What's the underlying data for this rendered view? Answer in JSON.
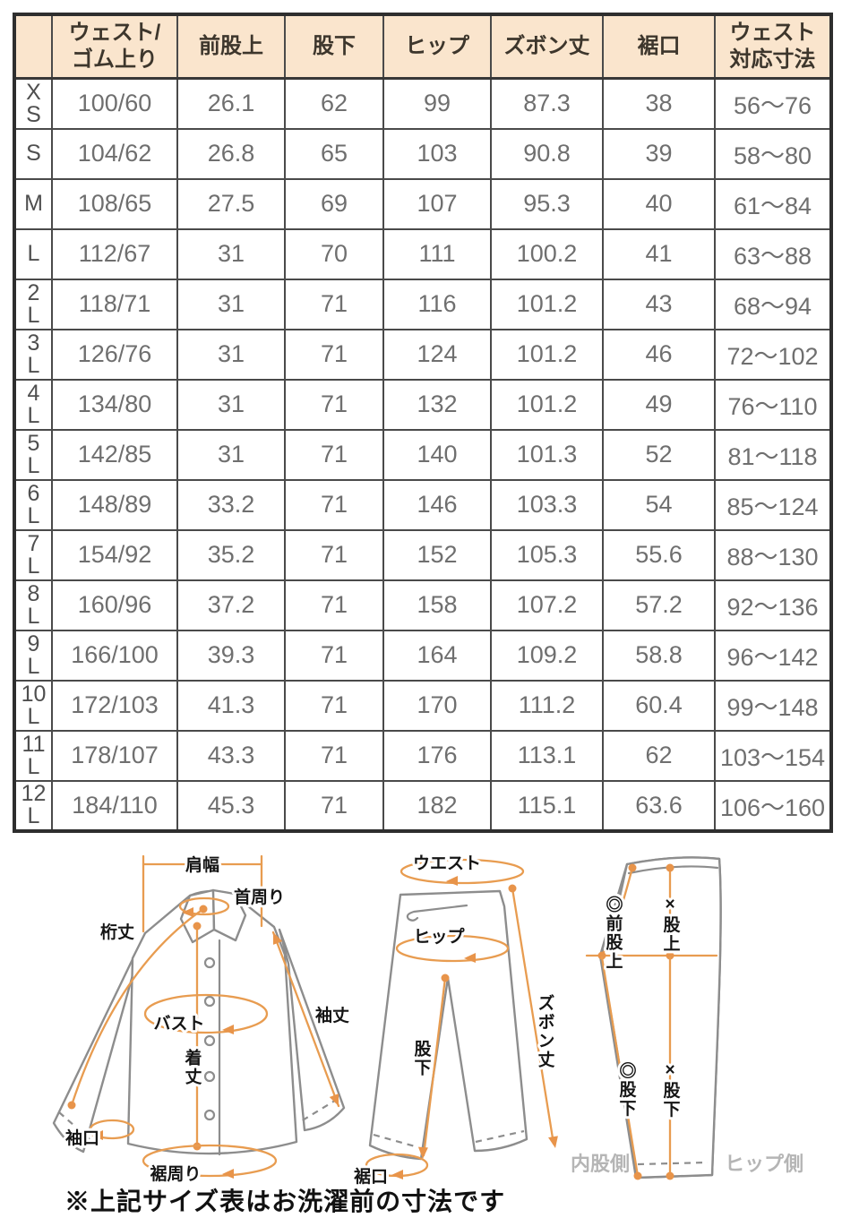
{
  "colors": {
    "header_bg": "#fae5cd",
    "table_border": "#4a4a4a",
    "value_text": "#6f6f6f",
    "diagram_orange": "#e89c50",
    "garment_gray": "#8d8d8d"
  },
  "size_table": {
    "corner_label": "",
    "columns": [
      "ウェスト/\nゴム上り",
      "前股上",
      "股下",
      "ヒップ",
      "ズボン丈",
      "裾口",
      "ウェスト\n対応寸法"
    ],
    "rows": [
      {
        "size": "X\nS",
        "cells": [
          "100/60",
          "26.1",
          "62",
          "99",
          "87.3",
          "38",
          "56〜76"
        ]
      },
      {
        "size": "S",
        "cells": [
          "104/62",
          "26.8",
          "65",
          "103",
          "90.8",
          "39",
          "58〜80"
        ]
      },
      {
        "size": "M",
        "cells": [
          "108/65",
          "27.5",
          "69",
          "107",
          "95.3",
          "40",
          "61〜84"
        ]
      },
      {
        "size": "L",
        "cells": [
          "112/67",
          "31",
          "70",
          "111",
          "100.2",
          "41",
          "63〜88"
        ]
      },
      {
        "size": "2\nL",
        "cells": [
          "118/71",
          "31",
          "71",
          "116",
          "101.2",
          "43",
          "68〜94"
        ]
      },
      {
        "size": "3\nL",
        "cells": [
          "126/76",
          "31",
          "71",
          "124",
          "101.2",
          "46",
          "72〜102"
        ]
      },
      {
        "size": "4\nL",
        "cells": [
          "134/80",
          "31",
          "71",
          "132",
          "101.2",
          "49",
          "76〜110"
        ]
      },
      {
        "size": "5\nL",
        "cells": [
          "142/85",
          "31",
          "71",
          "140",
          "101.3",
          "52",
          "81〜118"
        ]
      },
      {
        "size": "6\nL",
        "cells": [
          "148/89",
          "33.2",
          "71",
          "146",
          "103.3",
          "54",
          "85〜124"
        ]
      },
      {
        "size": "7\nL",
        "cells": [
          "154/92",
          "35.2",
          "71",
          "152",
          "105.3",
          "55.6",
          "88〜130"
        ]
      },
      {
        "size": "8\nL",
        "cells": [
          "160/96",
          "37.2",
          "71",
          "158",
          "107.2",
          "57.2",
          "92〜136"
        ]
      },
      {
        "size": "9\nL",
        "cells": [
          "166/100",
          "39.3",
          "71",
          "164",
          "109.2",
          "58.8",
          "96〜142"
        ]
      },
      {
        "size": "10\nL",
        "cells": [
          "172/103",
          "41.3",
          "71",
          "170",
          "111.2",
          "60.4",
          "99〜148"
        ]
      },
      {
        "size": "11\nL",
        "cells": [
          "178/107",
          "43.3",
          "71",
          "176",
          "113.1",
          "62",
          "103〜154"
        ]
      },
      {
        "size": "12\nL",
        "cells": [
          "184/110",
          "45.3",
          "71",
          "182",
          "115.1",
          "63.6",
          "106〜160"
        ]
      }
    ]
  },
  "diagrams": {
    "shirt": {
      "shoulder_width": "肩幅",
      "neck": "首周り",
      "yuki": "桁丈",
      "bust": "バスト",
      "sleeve_length": "袖丈",
      "body_length": "着丈",
      "cuff": "袖口",
      "hem_around": "裾周り"
    },
    "pants_front": {
      "waist": "ウエスト",
      "hip": "ヒップ",
      "pants_length": "ズボン丈",
      "inseam": "股下",
      "hem": "裾口"
    },
    "pants_side": {
      "front_rise": "◎前股上",
      "rise": "×股上",
      "inseam_inner": "◎股下",
      "inseam_hip": "×股下",
      "inner_side": "内股側",
      "hip_side": "ヒップ側"
    }
  },
  "footnote": "※上記サイズ表はお洗濯前の寸法です"
}
